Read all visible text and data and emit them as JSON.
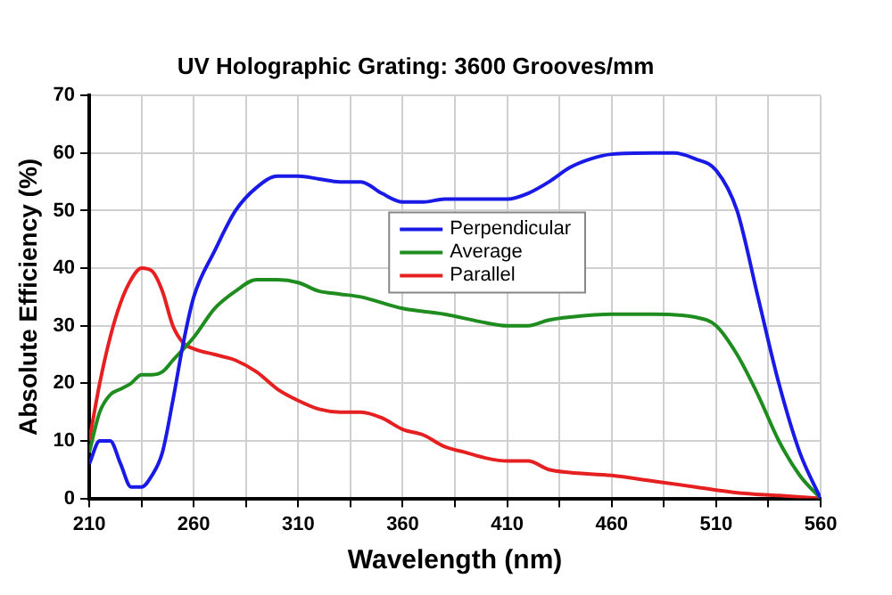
{
  "chart_data": {
    "type": "line",
    "title": "UV Holographic Grating: 3600 Grooves/mm",
    "xlabel": "Wavelength (nm)",
    "ylabel": "Absolute Efficiency (%)",
    "xlim": [
      210,
      560
    ],
    "xticks": [
      210,
      {
        "value": 235,
        "label": null
      },
      260,
      {
        "value": 285,
        "label": null
      },
      310,
      {
        "value": 335,
        "label": null
      },
      360,
      {
        "value": 385,
        "label": null
      },
      410,
      {
        "value": 435,
        "label": null
      },
      460,
      {
        "value": 485,
        "label": null
      },
      510,
      {
        "value": 535,
        "label": null
      },
      560
    ],
    "ylim": [
      0,
      70
    ],
    "yticks": [
      0,
      10,
      20,
      30,
      40,
      50,
      60,
      70
    ],
    "grid": true,
    "legend": "top",
    "marker": "none",
    "line_style": "solid",
    "series": [
      {
        "name": "Perpendicular",
        "color": "#1a1ae6",
        "x": [
          210,
          215,
          220,
          225,
          230,
          235,
          240,
          245,
          250,
          255,
          260,
          270,
          280,
          290,
          300,
          310,
          320,
          330,
          340,
          350,
          360,
          370,
          380,
          400,
          410,
          420,
          430,
          440,
          450,
          460,
          480,
          490,
          500,
          510,
          520,
          530,
          540,
          550,
          560
        ],
        "values": [
          6,
          10,
          10,
          6,
          2,
          2,
          4,
          8,
          17,
          27,
          35,
          43,
          50,
          54,
          56,
          56,
          55.5,
          55,
          55,
          53,
          51.5,
          51.5,
          52,
          52,
          52,
          53,
          55,
          57.5,
          59,
          59.8,
          60,
          60,
          59,
          57,
          50,
          35,
          20,
          8,
          0
        ]
      },
      {
        "name": "Average",
        "color": "#1e8c1e",
        "x": [
          210,
          215,
          220,
          225,
          230,
          235,
          240,
          245,
          250,
          260,
          270,
          280,
          290,
          300,
          310,
          320,
          330,
          340,
          360,
          380,
          400,
          410,
          420,
          430,
          440,
          460,
          480,
          500,
          510,
          520,
          530,
          540,
          550,
          560
        ],
        "values": [
          8,
          15,
          18,
          19,
          20,
          21.5,
          21.5,
          22,
          24,
          28,
          33,
          36,
          38,
          38,
          37.5,
          36,
          35.5,
          35,
          33,
          32,
          30.5,
          30,
          30,
          31,
          31.5,
          32,
          32,
          31.5,
          30,
          25,
          18,
          10,
          4,
          0
        ]
      },
      {
        "name": "Parallel",
        "color": "#e62020",
        "x": [
          210,
          215,
          220,
          225,
          230,
          235,
          240,
          245,
          250,
          255,
          260,
          270,
          280,
          290,
          300,
          310,
          320,
          330,
          340,
          350,
          360,
          370,
          380,
          390,
          400,
          410,
          420,
          430,
          440,
          460,
          480,
          500,
          520,
          540,
          560
        ],
        "values": [
          10,
          20,
          28,
          34,
          38,
          40,
          39.5,
          36,
          30,
          27,
          26,
          25,
          24,
          22,
          19,
          17,
          15.5,
          15,
          15,
          14,
          12,
          11,
          9,
          8,
          7,
          6.5,
          6.5,
          5,
          4.5,
          4,
          3,
          2,
          1,
          0.5,
          0
        ]
      }
    ]
  }
}
